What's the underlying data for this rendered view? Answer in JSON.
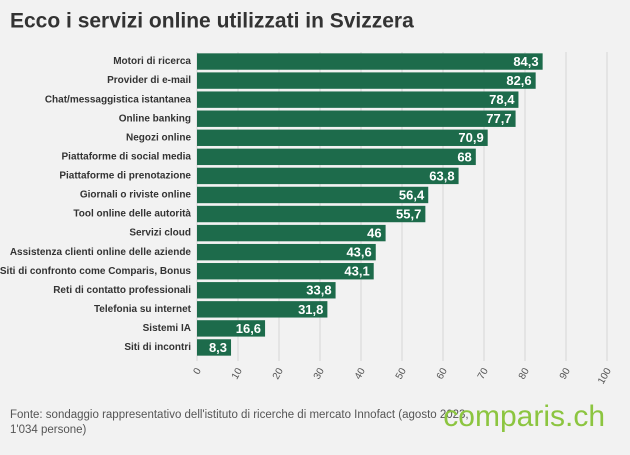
{
  "chart_data": {
    "type": "bar",
    "orientation": "horizontal",
    "title": "Ecco i servizi online utilizzati in Svizzera",
    "categories": [
      "Motori di ricerca",
      "Provider di e-mail",
      "Chat/messaggistica istantanea",
      "Online banking",
      "Negozi online",
      "Piattaforme di social media",
      "Piattaforme di prenotazione",
      "Giornali o riviste online",
      "Tool online delle autorità",
      "Servizi cloud",
      "Assistenza clienti online delle aziende",
      "Siti di confronto come Comparis, Bonus",
      "Reti di contatto professionali",
      "Telefonia su internet",
      "Sistemi IA",
      "Siti di incontri"
    ],
    "values": [
      84.3,
      82.6,
      78.4,
      77.7,
      70.9,
      68,
      63.8,
      56.4,
      55.7,
      46,
      43.6,
      43.1,
      33.8,
      31.8,
      16.6,
      8.3
    ],
    "value_labels": [
      "84,3",
      "82,6",
      "78,4",
      "77,7",
      "70,9",
      "68",
      "63,8",
      "56,4",
      "55,7",
      "46",
      "43,6",
      "43,1",
      "33,8",
      "31,8",
      "16,6",
      "8,3"
    ],
    "color": "#1d6b4b",
    "xlim": [
      0,
      100
    ],
    "xticks": [
      0,
      10,
      20,
      30,
      40,
      50,
      60,
      70,
      80,
      90,
      100
    ],
    "grid": true,
    "footer": [
      "Fonte: sondaggio rappresentativo dell'istituto di ricerche di mercato Innofact (agosto 2023,",
      "1'034 persone)"
    ],
    "logo": "comparis.ch"
  }
}
